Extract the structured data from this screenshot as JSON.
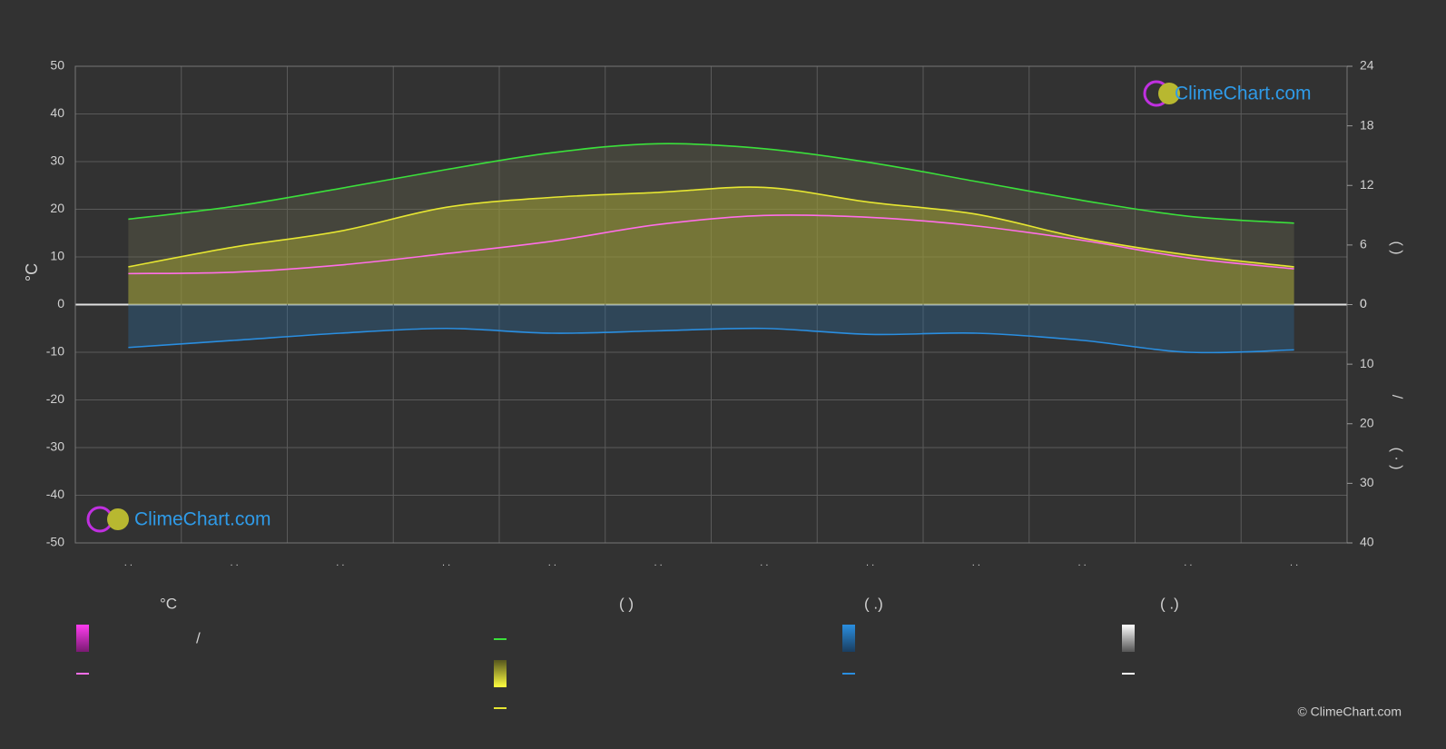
{
  "chart_data": {
    "type": "line",
    "ylabel": "°C",
    "categories": [
      ". .",
      ". .",
      ". .",
      ". .",
      ". .",
      ". .",
      ". .",
      ". .",
      ". .",
      ". .",
      ". .",
      ". ."
    ],
    "ylim": [
      -50,
      50
    ],
    "yticks": [
      -50,
      -40,
      -30,
      -20,
      -10,
      0,
      10,
      20,
      30,
      40,
      50
    ],
    "y2lim": [
      0,
      24
    ],
    "y2ticks": [
      0,
      6,
      12,
      18,
      24
    ],
    "y3lim": [
      0,
      40
    ],
    "y3ticks": [
      0,
      10,
      20,
      30,
      40
    ],
    "y2labels": [
      "( )",
      "/",
      "( · )"
    ],
    "grid": true,
    "series": [
      {
        "color": "#3be03b",
        "axis": "y2",
        "values": [
          8.6,
          9.9,
          11.7,
          13.6,
          15.3,
          16.2,
          15.7,
          14.3,
          12.4,
          10.5,
          8.9,
          8.2
        ]
      },
      {
        "color": "#e6e632",
        "axis": "y2",
        "values": [
          3.8,
          5.8,
          7.4,
          9.8,
          10.8,
          11.3,
          11.8,
          10.3,
          9.1,
          6.7,
          5.0,
          3.8
        ]
      },
      {
        "color": "#ff6ee8",
        "axis": "y",
        "values": [
          6.5,
          6.8,
          8.3,
          10.7,
          13.3,
          16.8,
          18.7,
          18.3,
          16.5,
          13.5,
          9.8,
          7.5
        ]
      },
      {
        "color": "#2a8ee0",
        "axis": "y3",
        "values": [
          7.2,
          6.0,
          4.8,
          4.0,
          4.8,
          4.4,
          4.0,
          5.0,
          4.8,
          6.0,
          8.0,
          7.6
        ]
      }
    ],
    "legend": {
      "headers": [
        "°C",
        "(   )",
        "(   .)",
        "(   .)"
      ],
      "items": [
        "/"
      ]
    },
    "watermark": "ClimeChart.com",
    "copyright": "© ClimeChart.com"
  }
}
